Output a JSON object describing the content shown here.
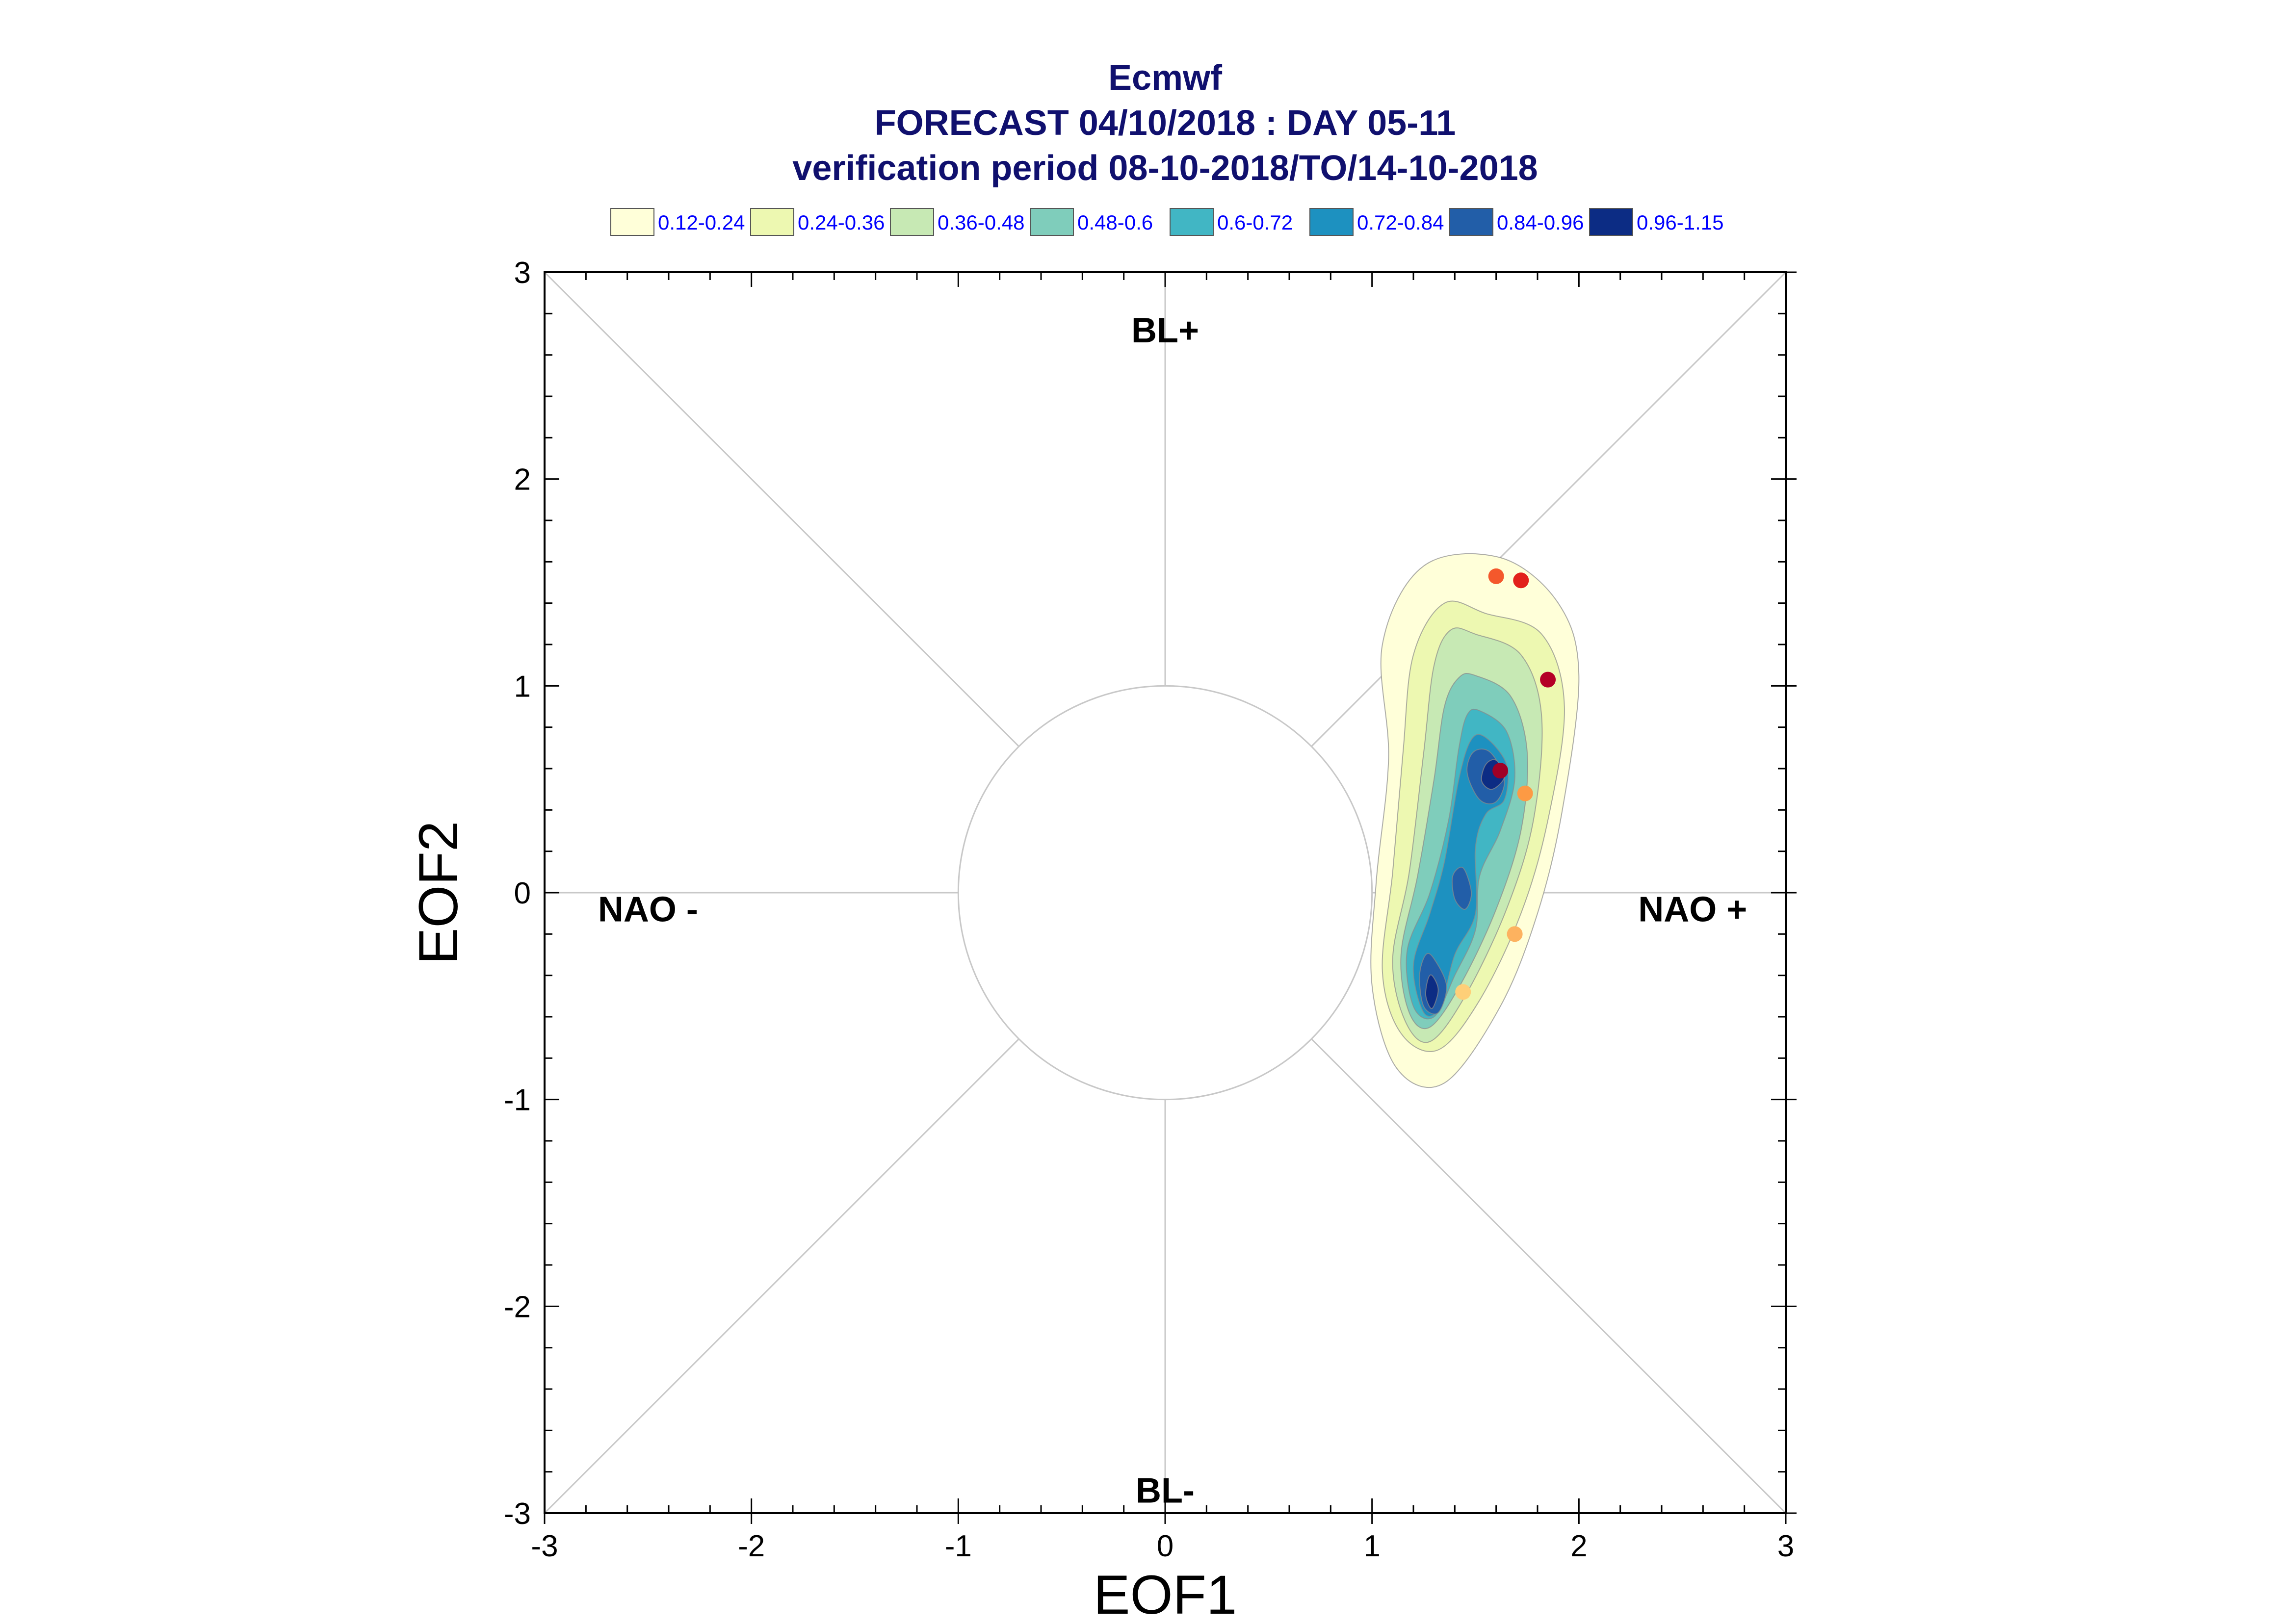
{
  "chart_data": {
    "type": "scatter",
    "title": [
      "Ecmwf",
      "FORECAST 04/10/2018 : DAY 05-11",
      "verification period 08-10-2018/TO/14-10-2018"
    ],
    "xlabel": "EOF1",
    "ylabel": "EOF2",
    "xlim": [
      -3,
      3
    ],
    "ylim": [
      -3,
      3
    ],
    "xticks": [
      "-3",
      "-2",
      "-1",
      "0",
      "1",
      "2",
      "3"
    ],
    "yticks": [
      "-3",
      "-2",
      "-1",
      "0",
      "1",
      "2",
      "3"
    ],
    "grid": false,
    "reference_circle_radius": 1,
    "regime_labels": [
      {
        "text": "BL+",
        "x": 0,
        "y": 2.72
      },
      {
        "text": "BL-",
        "x": 0,
        "y": -2.89
      },
      {
        "text": "NAO -",
        "x": -2.5,
        "y": -0.08
      },
      {
        "text": "NAO +",
        "x": 2.55,
        "y": -0.08
      }
    ],
    "legend": {
      "placement": "top",
      "levels": [
        {
          "label": "0.12-0.24",
          "color": "#ffffd9"
        },
        {
          "label": "0.24-0.36",
          "color": "#edf8b1"
        },
        {
          "label": "0.36-0.48",
          "color": "#c7e9b4"
        },
        {
          "label": "0.48-0.6",
          "color": "#7fcdbb"
        },
        {
          "label": "0.6-0.72",
          "color": "#41b6c4"
        },
        {
          "label": "0.72-0.84",
          "color": "#1d91c0"
        },
        {
          "label": "0.84-0.96",
          "color": "#225ea8"
        },
        {
          "label": "0.96-1.15",
          "color": "#0c2c84"
        }
      ]
    },
    "density_contours": [
      {
        "level": 0,
        "points": [
          [
            1.62,
            1.62
          ],
          [
            1.9,
            1.4
          ],
          [
            2.0,
            1.05
          ],
          [
            1.92,
            0.4
          ],
          [
            1.8,
            -0.1
          ],
          [
            1.62,
            -0.55
          ],
          [
            1.35,
            -0.92
          ],
          [
            1.12,
            -0.85
          ],
          [
            1.0,
            -0.45
          ],
          [
            1.02,
            0.05
          ],
          [
            1.08,
            0.65
          ],
          [
            1.05,
            1.2
          ],
          [
            1.25,
            1.58
          ]
        ]
      },
      {
        "level": 1,
        "points": [
          [
            1.55,
            1.35
          ],
          [
            1.82,
            1.25
          ],
          [
            1.93,
            0.9
          ],
          [
            1.85,
            0.35
          ],
          [
            1.72,
            -0.1
          ],
          [
            1.52,
            -0.52
          ],
          [
            1.32,
            -0.76
          ],
          [
            1.14,
            -0.68
          ],
          [
            1.05,
            -0.38
          ],
          [
            1.1,
            0.1
          ],
          [
            1.15,
            0.68
          ],
          [
            1.2,
            1.15
          ],
          [
            1.35,
            1.4
          ]
        ]
      },
      {
        "level": 2,
        "points": [
          [
            1.5,
            1.25
          ],
          [
            1.72,
            1.15
          ],
          [
            1.82,
            0.85
          ],
          [
            1.78,
            0.35
          ],
          [
            1.65,
            -0.08
          ],
          [
            1.45,
            -0.5
          ],
          [
            1.28,
            -0.72
          ],
          [
            1.16,
            -0.62
          ],
          [
            1.1,
            -0.32
          ],
          [
            1.18,
            0.1
          ],
          [
            1.25,
            0.68
          ],
          [
            1.3,
            1.1
          ],
          [
            1.38,
            1.27
          ]
        ]
      },
      {
        "level": 3,
        "points": [
          [
            1.5,
            1.05
          ],
          [
            1.67,
            0.95
          ],
          [
            1.75,
            0.68
          ],
          [
            1.72,
            0.3
          ],
          [
            1.6,
            -0.08
          ],
          [
            1.43,
            -0.44
          ],
          [
            1.28,
            -0.65
          ],
          [
            1.18,
            -0.58
          ],
          [
            1.14,
            -0.3
          ],
          [
            1.22,
            0.08
          ],
          [
            1.3,
            0.55
          ],
          [
            1.35,
            0.9
          ],
          [
            1.42,
            1.04
          ]
        ]
      },
      {
        "level": 4,
        "points": [
          [
            1.52,
            0.88
          ],
          [
            1.65,
            0.78
          ],
          [
            1.69,
            0.55
          ],
          [
            1.62,
            0.3
          ],
          [
            1.52,
            0.08
          ],
          [
            1.5,
            -0.18
          ],
          [
            1.4,
            -0.4
          ],
          [
            1.3,
            -0.6
          ],
          [
            1.2,
            -0.55
          ],
          [
            1.17,
            -0.28
          ],
          [
            1.28,
            0.0
          ],
          [
            1.37,
            0.35
          ],
          [
            1.42,
            0.7
          ],
          [
            1.46,
            0.86
          ]
        ]
      },
      {
        "level": 5,
        "points": [
          [
            1.55,
            0.75
          ],
          [
            1.65,
            0.62
          ],
          [
            1.64,
            0.45
          ],
          [
            1.55,
            0.38
          ],
          [
            1.5,
            0.22
          ],
          [
            1.5,
            -0.1
          ],
          [
            1.4,
            -0.3
          ],
          [
            1.33,
            -0.55
          ],
          [
            1.25,
            -0.58
          ],
          [
            1.2,
            -0.35
          ],
          [
            1.28,
            -0.1
          ],
          [
            1.35,
            0.15
          ],
          [
            1.42,
            0.55
          ],
          [
            1.48,
            0.74
          ]
        ]
      },
      {
        "level": 6,
        "points": [
          [
            1.57,
            0.68
          ],
          [
            1.64,
            0.55
          ],
          [
            1.6,
            0.44
          ],
          [
            1.52,
            0.45
          ],
          [
            1.46,
            0.58
          ],
          [
            1.49,
            0.68
          ]
        ]
      },
      {
        "level": 6,
        "points": [
          [
            1.44,
            0.12
          ],
          [
            1.48,
            0.0
          ],
          [
            1.45,
            -0.08
          ],
          [
            1.4,
            -0.03
          ],
          [
            1.39,
            0.08
          ]
        ]
      },
      {
        "level": 6,
        "points": [
          [
            1.3,
            -0.32
          ],
          [
            1.36,
            -0.45
          ],
          [
            1.32,
            -0.58
          ],
          [
            1.25,
            -0.55
          ],
          [
            1.23,
            -0.4
          ],
          [
            1.26,
            -0.3
          ]
        ]
      },
      {
        "level": 7,
        "points": [
          [
            1.6,
            0.64
          ],
          [
            1.64,
            0.56
          ],
          [
            1.58,
            0.5
          ],
          [
            1.53,
            0.54
          ],
          [
            1.55,
            0.62
          ]
        ]
      },
      {
        "level": 7,
        "points": [
          [
            1.29,
            -0.4
          ],
          [
            1.32,
            -0.47
          ],
          [
            1.29,
            -0.56
          ],
          [
            1.26,
            -0.5
          ],
          [
            1.27,
            -0.42
          ]
        ]
      }
    ],
    "points": [
      {
        "x": 1.6,
        "y": 1.53,
        "color": "#f4582c"
      },
      {
        "x": 1.72,
        "y": 1.51,
        "color": "#e2211c"
      },
      {
        "x": 1.85,
        "y": 1.03,
        "color": "#b40026"
      },
      {
        "x": 1.62,
        "y": 0.59,
        "color": "#a00026"
      },
      {
        "x": 1.74,
        "y": 0.48,
        "color": "#fd9a44"
      },
      {
        "x": 1.69,
        "y": -0.2,
        "color": "#fdb25f"
      },
      {
        "x": 1.44,
        "y": -0.48,
        "color": "#fecf78"
      }
    ]
  }
}
